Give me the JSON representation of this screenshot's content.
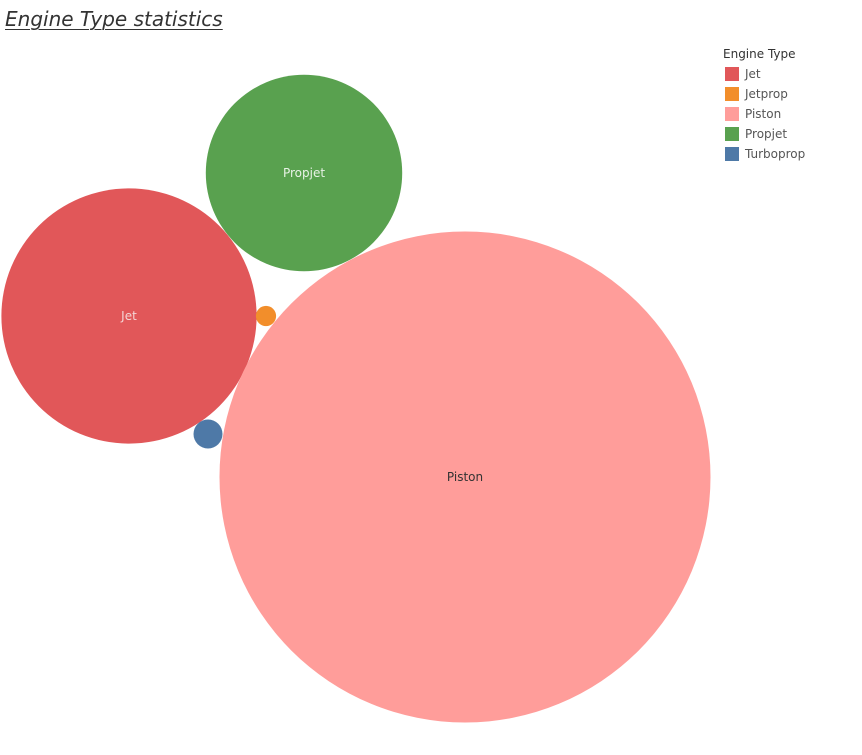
{
  "title": "Engine Type statistics",
  "legend": {
    "title": "Engine Type",
    "items": [
      {
        "label": "Jet",
        "color": "#e15759"
      },
      {
        "label": "Jetprop",
        "color": "#f28e2b"
      },
      {
        "label": "Piston",
        "color": "#ff9d9a"
      },
      {
        "label": "Propjet",
        "color": "#59a14f"
      },
      {
        "label": "Turboprop",
        "color": "#4e79a7"
      }
    ]
  },
  "chart_data": {
    "type": "bubble",
    "title": "Engine Type statistics",
    "legend_title": "Engine Type",
    "legend_position": "top-right",
    "series": [
      {
        "name": "Jet",
        "relative_size": 0.27,
        "color": "#e15759",
        "label": "Jet",
        "label_color": "#f4d5d5"
      },
      {
        "name": "Jetprop",
        "relative_size": 0.0017,
        "color": "#f28e2b",
        "label": "",
        "label_color": ""
      },
      {
        "name": "Piston",
        "relative_size": 1.0,
        "color": "#ff9d9a",
        "label": "Piston",
        "label_color": "#333333"
      },
      {
        "name": "Propjet",
        "relative_size": 0.16,
        "color": "#59a14f",
        "label": "Propjet",
        "label_color": "#e8f2e6"
      },
      {
        "name": "Turboprop",
        "relative_size": 0.0035,
        "color": "#4e79a7",
        "label": "",
        "label_color": ""
      }
    ]
  }
}
